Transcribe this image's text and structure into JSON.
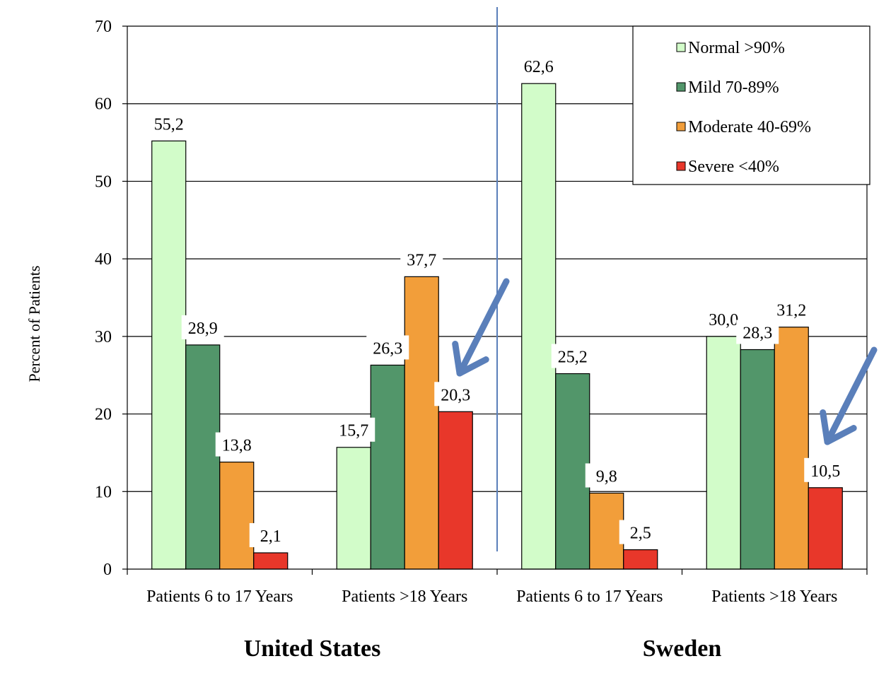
{
  "chart_data": {
    "type": "bar",
    "ylabel": "Percent of Patients",
    "ylim": [
      0,
      70
    ],
    "yticks": [
      "0",
      "10",
      "20",
      "30",
      "40",
      "50",
      "60",
      "70"
    ],
    "grid": true,
    "legend_position": "top-right",
    "categories": [
      "Patients 6 to 17 Years",
      "Patients >18 Years",
      "Patients 6 to 17 Years",
      "Patients >18 Years"
    ],
    "groups": [
      {
        "label": "United States",
        "categories": [
          0,
          1
        ]
      },
      {
        "label": "Sweden",
        "categories": [
          2,
          3
        ]
      }
    ],
    "series": [
      {
        "name": "Normal >90%",
        "color": "#d2fcc9",
        "values": [
          55.2,
          15.7,
          62.6,
          30.0
        ],
        "labels": [
          "55,2",
          "15,7",
          "62,6",
          "30,0"
        ]
      },
      {
        "name": "Mild 70-89%",
        "color": "#52966a",
        "values": [
          28.9,
          26.3,
          25.2,
          28.3
        ],
        "labels": [
          "28,9",
          "26,3",
          "25,2",
          "28,3"
        ]
      },
      {
        "name": "Moderate 40-69%",
        "color": "#f29e3a",
        "values": [
          13.8,
          37.7,
          9.8,
          31.2
        ],
        "labels": [
          "13,8",
          "37,7",
          "9,8",
          "31,2"
        ]
      },
      {
        "name": "Severe <40%",
        "color": "#e8372a",
        "values": [
          2.1,
          20.3,
          2.5,
          10.5
        ],
        "labels": [
          "2,1",
          "20,3",
          "2,5",
          "10,5"
        ]
      }
    ],
    "annotations": [
      {
        "type": "arrow",
        "target": "Severe <40% in United States Patients >18 Years",
        "color": "#5a7fba"
      },
      {
        "type": "arrow",
        "target": "Severe <40% in Sweden Patients >18 Years",
        "color": "#5a7fba"
      }
    ]
  }
}
